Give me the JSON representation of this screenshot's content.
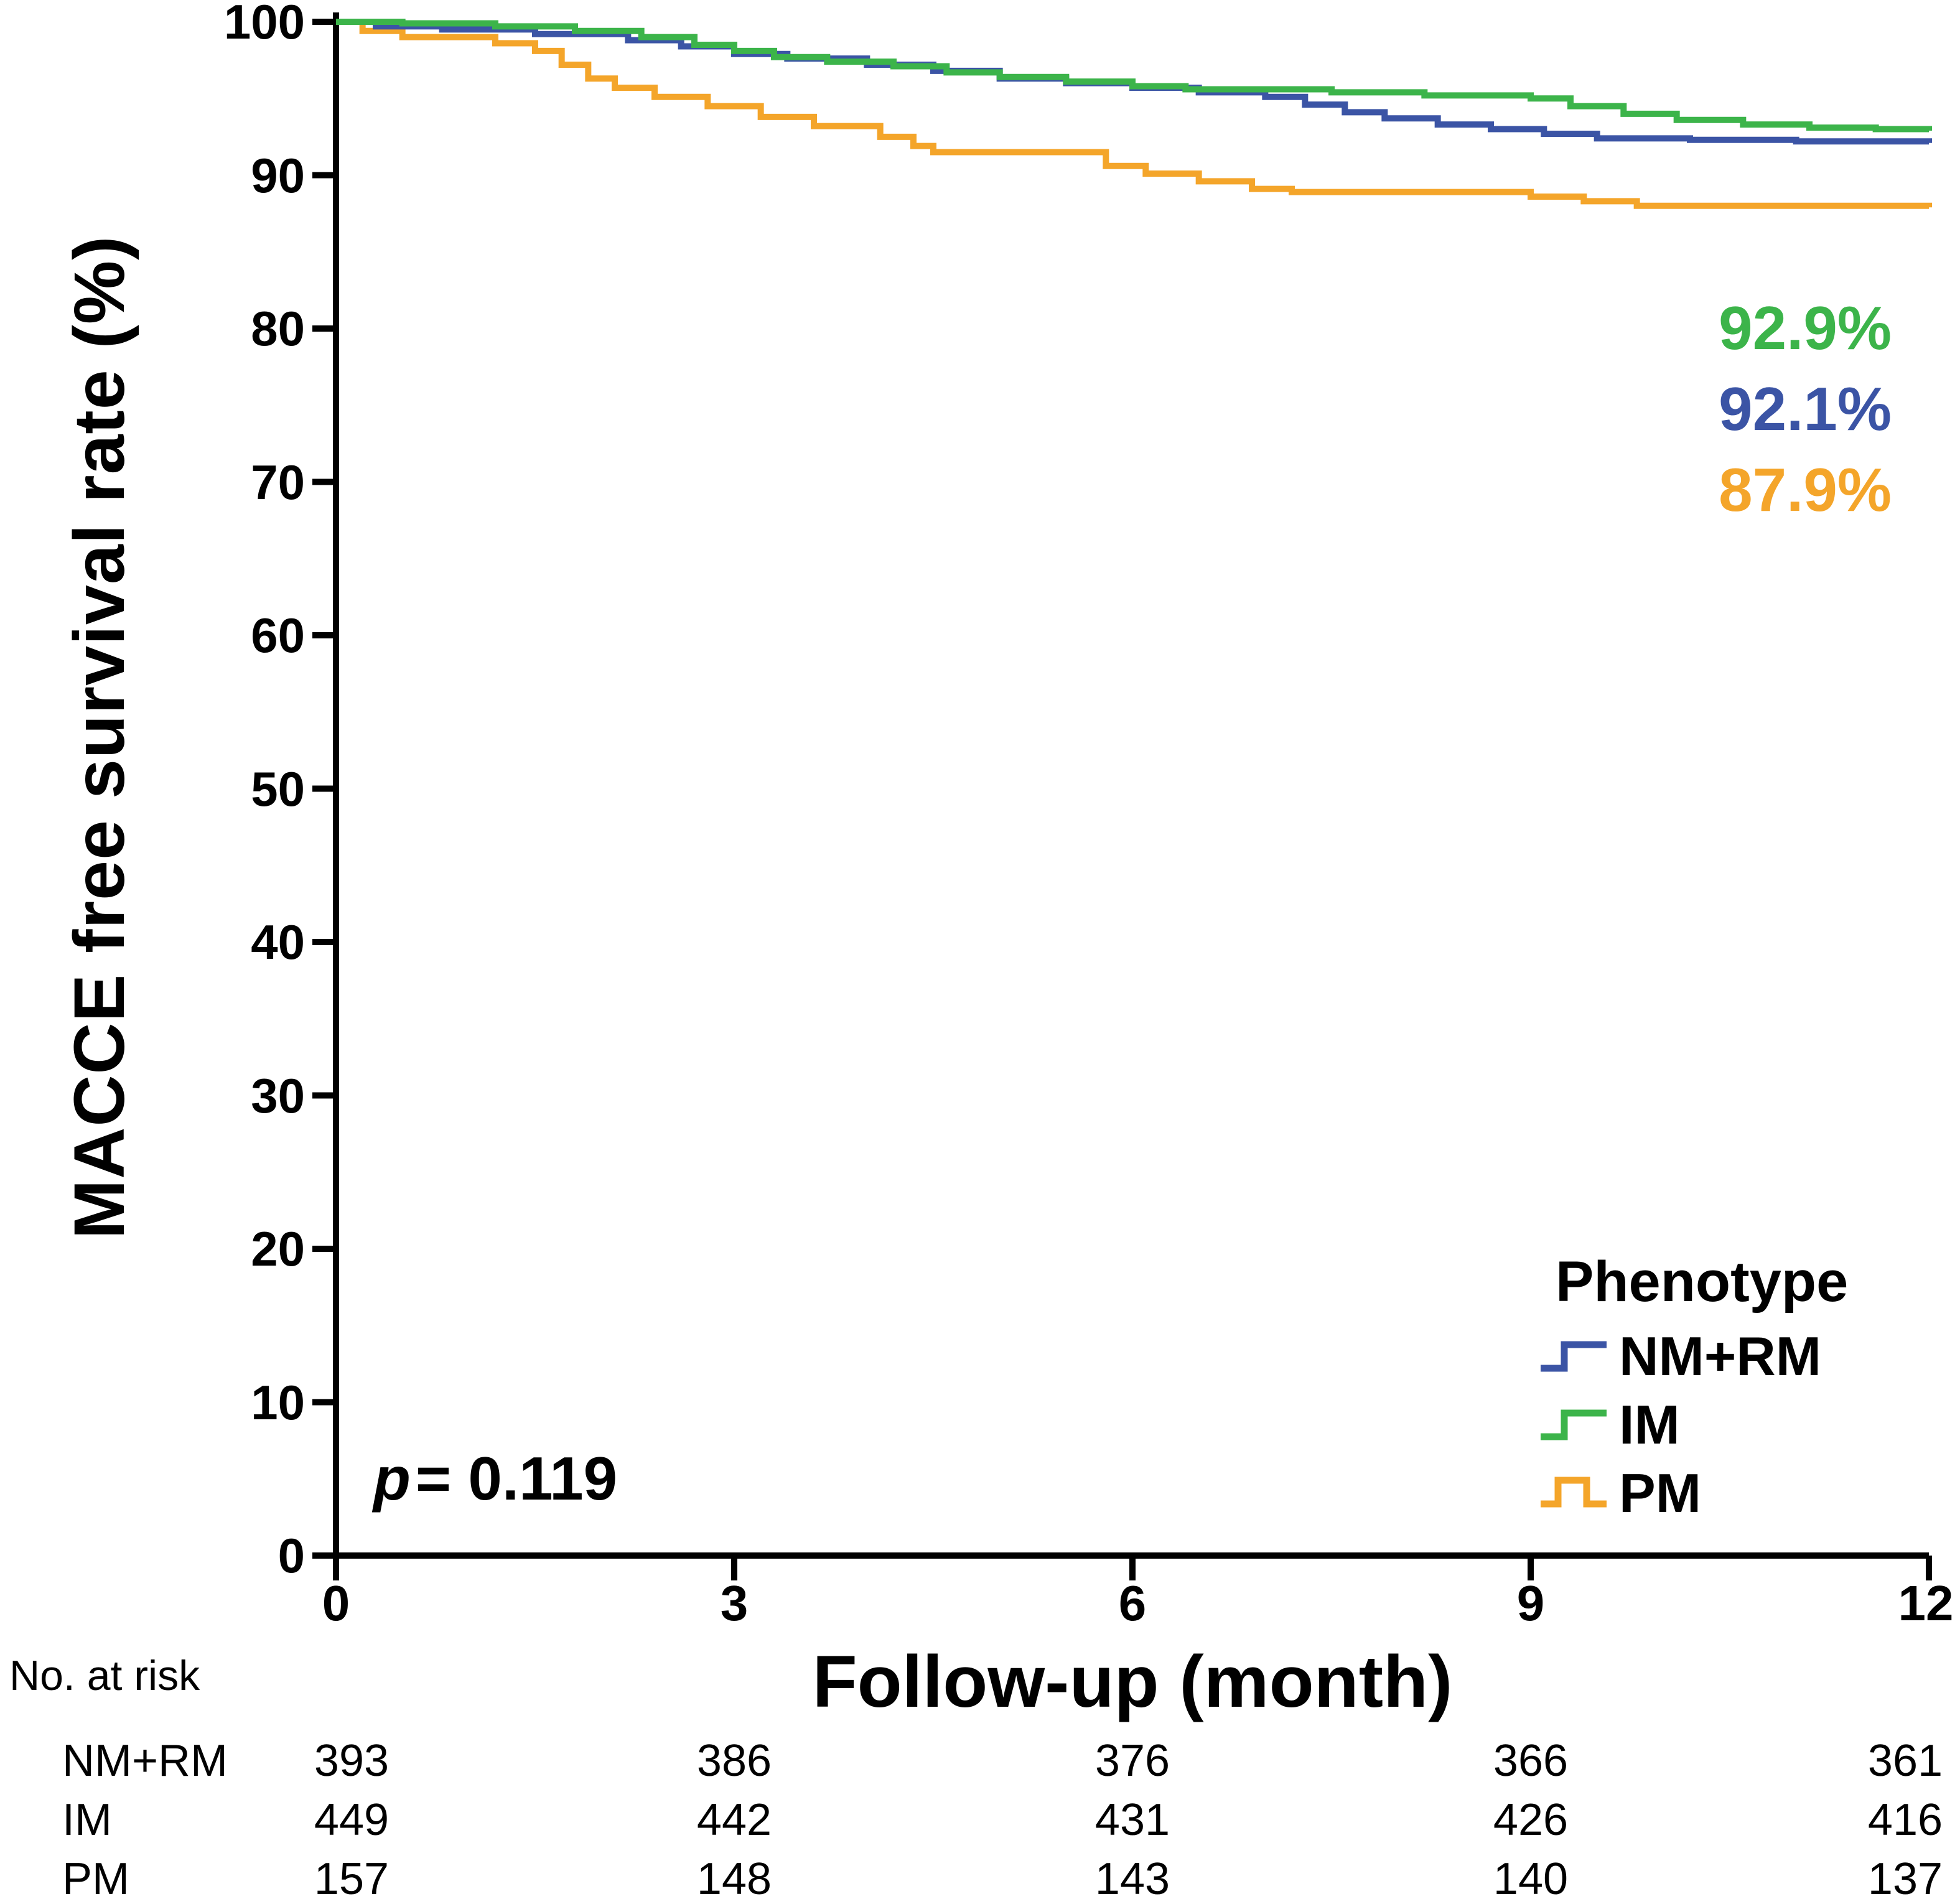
{
  "figure": {
    "no_at_risk_label": "No. at risk",
    "legend_title": "Phenotype",
    "p_value": {
      "symbol": "p",
      "rest": "= 0.119"
    }
  },
  "chart_data": {
    "type": "line",
    "subtype": "kaplan-meier-step",
    "title": "",
    "xlabel": "Follow-up (month)",
    "ylabel": "MACCE free survival rate (%)",
    "xlim": [
      0,
      12
    ],
    "ylim": [
      0,
      100
    ],
    "xticks": [
      0,
      3,
      6,
      9,
      12
    ],
    "yticks": [
      0,
      10,
      20,
      30,
      40,
      50,
      60,
      70,
      80,
      90,
      100
    ],
    "grid": false,
    "legend_position": "lower-right",
    "series": [
      {
        "name": "NM+RM",
        "color": "#3b54a5",
        "final_label": "92.1%",
        "x": [
          0,
          0.3,
          0.8,
          1.5,
          2.2,
          2.6,
          3.0,
          3.4,
          4.0,
          4.5,
          5.0,
          5.5,
          6.0,
          6.5,
          7.0,
          7.3,
          7.6,
          7.9,
          8.3,
          8.7,
          9.1,
          9.5,
          10.2,
          11.0,
          12
        ],
        "y": [
          100,
          99.7,
          99.5,
          99.2,
          98.8,
          98.4,
          97.9,
          97.6,
          97.2,
          96.8,
          96.3,
          96.0,
          95.7,
          95.4,
          95.1,
          94.6,
          94.1,
          93.7,
          93.3,
          93.0,
          92.7,
          92.4,
          92.3,
          92.2,
          92.1
        ]
      },
      {
        "name": "IM",
        "color": "#3cb44a",
        "final_label": "92.9%",
        "x": [
          0,
          0.5,
          1.2,
          1.8,
          2.3,
          2.7,
          3.0,
          3.3,
          3.7,
          4.2,
          4.6,
          5.0,
          5.5,
          6.0,
          6.4,
          7.5,
          8.2,
          9.0,
          9.3,
          9.7,
          10.1,
          10.6,
          11.1,
          11.6,
          12
        ],
        "y": [
          100,
          99.9,
          99.7,
          99.4,
          99.0,
          98.5,
          98.1,
          97.7,
          97.4,
          97.1,
          96.7,
          96.4,
          96.1,
          95.8,
          95.6,
          95.4,
          95.2,
          95.0,
          94.5,
          94.0,
          93.6,
          93.3,
          93.1,
          93.0,
          92.9
        ]
      },
      {
        "name": "PM",
        "color": "#f4a52a",
        "final_label": "87.9%",
        "x": [
          0,
          0.2,
          0.5,
          1.2,
          1.5,
          1.7,
          1.9,
          2.1,
          2.4,
          2.8,
          3.2,
          3.6,
          4.1,
          4.35,
          4.5,
          5.8,
          6.1,
          6.5,
          6.9,
          7.2,
          9.0,
          9.4,
          9.8,
          12
        ],
        "y": [
          100,
          99.4,
          99.0,
          98.6,
          98.1,
          97.2,
          96.3,
          95.7,
          95.1,
          94.5,
          93.8,
          93.2,
          92.5,
          91.9,
          91.5,
          90.6,
          90.1,
          89.6,
          89.1,
          88.9,
          88.6,
          88.3,
          88.0,
          87.9
        ]
      }
    ],
    "annotations": [
      {
        "series": "IM",
        "text": "92.9%",
        "color": "#3cb44a"
      },
      {
        "series": "NM+RM",
        "text": "92.1%",
        "color": "#3b54a5"
      },
      {
        "series": "PM",
        "text": "87.9%",
        "color": "#f4a52a"
      }
    ],
    "p_value_text": "p = 0.119",
    "risk_table": {
      "label": "No. at risk",
      "timepoints": [
        0,
        3,
        6,
        9,
        12
      ],
      "rows": [
        {
          "name": "NM+RM",
          "values": [
            393,
            386,
            376,
            366,
            361
          ]
        },
        {
          "name": "IM",
          "values": [
            449,
            442,
            431,
            426,
            416
          ]
        },
        {
          "name": "PM",
          "values": [
            157,
            148,
            143,
            140,
            137
          ]
        }
      ]
    }
  }
}
